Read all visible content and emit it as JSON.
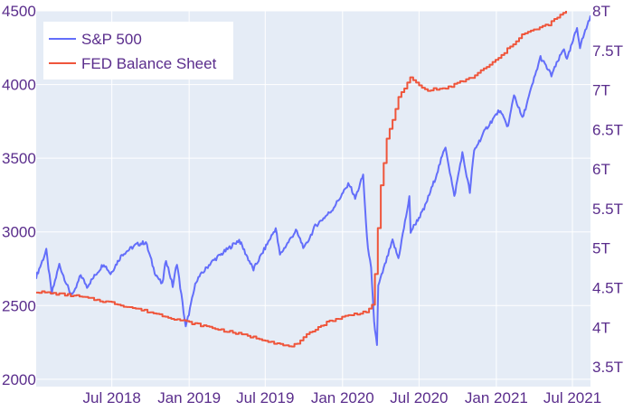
{
  "chart_data": {
    "type": "line",
    "title": "",
    "xlabel": "",
    "ylabel_left": "",
    "ylabel_right": "",
    "x_range": [
      "2018-01-02",
      "2021-08-13"
    ],
    "y_left_range": [
      1950,
      4500
    ],
    "y_right_range": [
      3.25,
      8.0
    ],
    "x_ticks": [
      {
        "date": "2018-07-01",
        "label": "Jul 2018"
      },
      {
        "date": "2019-01-01",
        "label": "Jan 2019"
      },
      {
        "date": "2019-07-01",
        "label": "Jul 2019"
      },
      {
        "date": "2020-01-01",
        "label": "Jan 2020"
      },
      {
        "date": "2020-07-01",
        "label": "Jul 2020"
      },
      {
        "date": "2021-01-01",
        "label": "Jan 2021"
      },
      {
        "date": "2021-07-01",
        "label": "Jul 2021"
      }
    ],
    "y_left_ticks": [
      {
        "value": 2000,
        "label": "2000"
      },
      {
        "value": 2500,
        "label": "2500"
      },
      {
        "value": 3000,
        "label": "3000"
      },
      {
        "value": 3500,
        "label": "3500"
      },
      {
        "value": 4000,
        "label": "4000"
      },
      {
        "value": 4500,
        "label": "4500"
      }
    ],
    "y_right_ticks": [
      {
        "value": 3.5,
        "label": "3.5T"
      },
      {
        "value": 4.0,
        "label": "4T"
      },
      {
        "value": 4.5,
        "label": "4.5T"
      },
      {
        "value": 5.0,
        "label": "5T"
      },
      {
        "value": 5.5,
        "label": "5.5T"
      },
      {
        "value": 6.0,
        "label": "6T"
      },
      {
        "value": 6.5,
        "label": "6.5T"
      },
      {
        "value": 7.0,
        "label": "7T"
      },
      {
        "value": 7.5,
        "label": "7.5T"
      },
      {
        "value": 8.0,
        "label": "8T"
      }
    ],
    "grid": true,
    "legend_position": "top-left",
    "series": [
      {
        "name": "S&P 500",
        "axis": "left",
        "color": "#636efa",
        "points": [
          [
            "2018-01-02",
            2695
          ],
          [
            "2018-01-26",
            2872
          ],
          [
            "2018-02-08",
            2581
          ],
          [
            "2018-02-26",
            2779
          ],
          [
            "2018-03-23",
            2588
          ],
          [
            "2018-04-02",
            2582
          ],
          [
            "2018-04-18",
            2708
          ],
          [
            "2018-05-03",
            2630
          ],
          [
            "2018-06-12",
            2786
          ],
          [
            "2018-06-28",
            2716
          ],
          [
            "2018-07-25",
            2846
          ],
          [
            "2018-08-29",
            2914
          ],
          [
            "2018-09-20",
            2930
          ],
          [
            "2018-10-11",
            2728
          ],
          [
            "2018-10-29",
            2641
          ],
          [
            "2018-11-07",
            2813
          ],
          [
            "2018-11-23",
            2632
          ],
          [
            "2018-12-03",
            2790
          ],
          [
            "2018-12-24",
            2351
          ],
          [
            "2019-01-18",
            2670
          ],
          [
            "2019-02-22",
            2792
          ],
          [
            "2019-03-21",
            2854
          ],
          [
            "2019-04-30",
            2945
          ],
          [
            "2019-06-03",
            2744
          ],
          [
            "2019-07-26",
            3025
          ],
          [
            "2019-08-05",
            2844
          ],
          [
            "2019-09-12",
            3009
          ],
          [
            "2019-10-02",
            2887
          ],
          [
            "2019-10-28",
            3039
          ],
          [
            "2019-12-06",
            3145
          ],
          [
            "2020-01-17",
            3329
          ],
          [
            "2020-01-31",
            3225
          ],
          [
            "2020-02-19",
            3386
          ],
          [
            "2020-02-28",
            2954
          ],
          [
            "2020-03-09",
            2747
          ],
          [
            "2020-03-16",
            2386
          ],
          [
            "2020-03-23",
            2237
          ],
          [
            "2020-03-26",
            2630
          ],
          [
            "2020-04-08",
            2750
          ],
          [
            "2020-04-29",
            2939
          ],
          [
            "2020-05-13",
            2820
          ],
          [
            "2020-06-08",
            3232
          ],
          [
            "2020-06-11",
            3002
          ],
          [
            "2020-07-13",
            3155
          ],
          [
            "2020-08-07",
            3351
          ],
          [
            "2020-09-02",
            3580
          ],
          [
            "2020-09-23",
            3237
          ],
          [
            "2020-10-12",
            3534
          ],
          [
            "2020-10-30",
            3270
          ],
          [
            "2020-11-09",
            3551
          ],
          [
            "2020-12-08",
            3702
          ],
          [
            "2021-01-08",
            3824
          ],
          [
            "2021-01-29",
            3714
          ],
          [
            "2021-02-12",
            3934
          ],
          [
            "2021-03-04",
            3768
          ],
          [
            "2021-04-16",
            4185
          ],
          [
            "2021-05-12",
            4063
          ],
          [
            "2021-06-11",
            4247
          ],
          [
            "2021-06-18",
            4166
          ],
          [
            "2021-07-12",
            4384
          ],
          [
            "2021-07-19",
            4258
          ],
          [
            "2021-08-13",
            4468
          ]
        ]
      },
      {
        "name": "FED Balance Sheet",
        "axis": "right",
        "color": "#ef553b",
        "points": [
          [
            "2018-01-02",
            4.45
          ],
          [
            "2018-04-01",
            4.4
          ],
          [
            "2018-07-01",
            4.31
          ],
          [
            "2018-10-01",
            4.19
          ],
          [
            "2019-01-01",
            4.06
          ],
          [
            "2019-04-01",
            3.95
          ],
          [
            "2019-07-01",
            3.84
          ],
          [
            "2019-08-20",
            3.76
          ],
          [
            "2019-09-15",
            3.78
          ],
          [
            "2019-10-15",
            3.94
          ],
          [
            "2019-12-01",
            4.08
          ],
          [
            "2020-01-15",
            4.15
          ],
          [
            "2020-02-26",
            4.2
          ],
          [
            "2020-03-11",
            4.27
          ],
          [
            "2020-03-18",
            4.66
          ],
          [
            "2020-03-25",
            5.25
          ],
          [
            "2020-04-01",
            5.8
          ],
          [
            "2020-04-15",
            6.37
          ],
          [
            "2020-05-13",
            6.9
          ],
          [
            "2020-06-10",
            7.15
          ],
          [
            "2020-07-15",
            7.0
          ],
          [
            "2020-09-02",
            7.02
          ],
          [
            "2020-11-04",
            7.16
          ],
          [
            "2021-01-06",
            7.4
          ],
          [
            "2021-03-03",
            7.7
          ],
          [
            "2021-05-05",
            7.83
          ],
          [
            "2021-06-30",
            8.06
          ],
          [
            "2021-08-13",
            8.3
          ]
        ]
      }
    ]
  }
}
